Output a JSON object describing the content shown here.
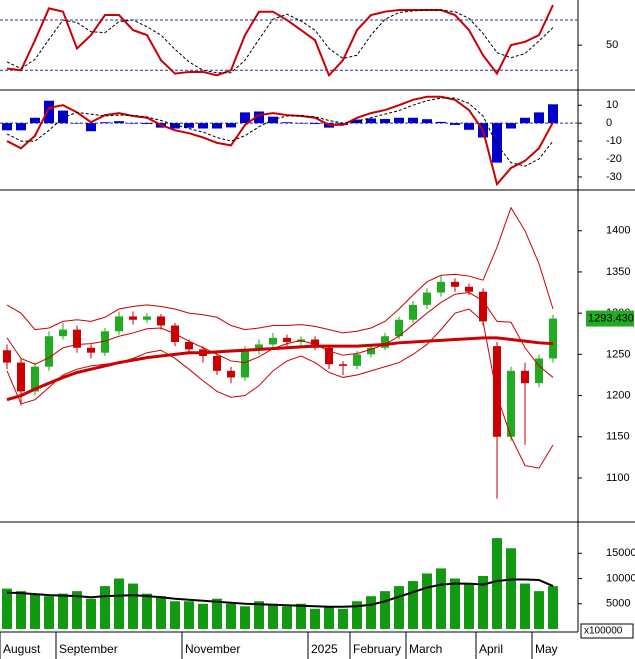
{
  "chart_data": [
    {
      "type": "line",
      "ylim": [
        0,
        98
      ],
      "yticks": [
        50
      ],
      "levels": [
        20,
        80
      ],
      "series": [
        {
          "color": "#cc0000",
          "values": [
            22,
            20,
            56,
            94,
            90,
            46,
            62,
            86,
            86,
            68,
            62,
            32,
            16,
            18,
            18,
            14,
            20,
            62,
            90,
            90,
            80,
            68,
            56,
            14,
            32,
            68,
            86,
            90,
            92,
            92,
            92,
            92,
            86,
            68,
            38,
            16,
            50,
            54,
            62,
            98
          ]
        },
        {
          "color": "#000000",
          "style": "dashed",
          "values": [
            30,
            22,
            33,
            57,
            80,
            77,
            66,
            65,
            78,
            80,
            72,
            62,
            45,
            30,
            20,
            17,
            17,
            32,
            57,
            81,
            87,
            79,
            68,
            46,
            34,
            38,
            62,
            81,
            89,
            91,
            92,
            92,
            90,
            82,
            64,
            41,
            35,
            40,
            55,
            71
          ]
        }
      ]
    },
    {
      "type": "line",
      "ylim": [
        -35.6,
        16.8
      ],
      "yticks": [
        10,
        0,
        -10,
        -20,
        -30
      ],
      "levels": [
        0
      ],
      "series": [
        {
          "color": "#0000cc",
          "kind": "bar",
          "values": [
            -4,
            -4,
            3,
            12.5,
            7,
            0,
            -4.5,
            0.5,
            1.1,
            -0.3,
            -0.5,
            -2.5,
            -3,
            -2.6,
            -3,
            -3,
            -2.4,
            6,
            6.5,
            3.6,
            0.5,
            -0.2,
            -0.5,
            -2.5,
            -1,
            2,
            2.6,
            2.3,
            3,
            3,
            2.2,
            0.7,
            -1,
            -3.7,
            -8,
            -22,
            -3,
            3,
            6,
            10.5
          ]
        },
        {
          "color": "#cc0000",
          "values": [
            -10,
            -14,
            -7,
            8.5,
            10,
            6,
            0.5,
            4.5,
            5.6,
            4,
            3,
            -1,
            -4,
            -5.6,
            -8,
            -11,
            -12.4,
            -1,
            4.5,
            5.6,
            4.5,
            4,
            3,
            -1,
            -1,
            3,
            5.6,
            7.3,
            10,
            13,
            14.7,
            14.7,
            13,
            7.3,
            -4,
            -34,
            -25,
            -21,
            -14,
            0.5
          ]
        },
        {
          "color": "#000000",
          "style": "dashed",
          "values": [
            -6,
            -10,
            -10,
            -4,
            3,
            6,
            5,
            4,
            4.5,
            4.3,
            3.5,
            1.5,
            -1,
            -3,
            -5,
            -8,
            -10,
            -7,
            -2,
            2,
            4,
            4.2,
            3.5,
            1.5,
            0,
            1,
            3,
            5,
            7,
            10,
            12.5,
            14,
            14,
            11,
            4,
            -12,
            -22,
            -24,
            -20,
            -10
          ]
        }
      ]
    },
    {
      "type": "candlestick",
      "ylim": [
        1049,
        1447
      ],
      "yticks": [
        1100,
        1150,
        1200,
        1250,
        1300,
        1350,
        1400
      ],
      "up_color": "#22aa22",
      "down_color": "#cc0000",
      "open": [
        1255,
        1240,
        1205,
        1235,
        1272,
        1280,
        1258,
        1252,
        1278,
        1296,
        1292,
        1296,
        1285,
        1265,
        1256,
        1248,
        1230,
        1222,
        1255,
        1262,
        1270,
        1265,
        1268,
        1258,
        1238,
        1236,
        1250,
        1258,
        1272,
        1292,
        1310,
        1325,
        1338,
        1332,
        1326,
        1260,
        1150,
        1230,
        1215,
        1245
      ],
      "high": [
        1262,
        1245,
        1240,
        1278,
        1288,
        1285,
        1262,
        1282,
        1302,
        1302,
        1300,
        1299,
        1288,
        1268,
        1260,
        1250,
        1235,
        1260,
        1268,
        1276,
        1274,
        1272,
        1272,
        1262,
        1242,
        1254,
        1262,
        1276,
        1296,
        1315,
        1330,
        1345,
        1342,
        1336,
        1330,
        1265,
        1235,
        1240,
        1250,
        1298
      ],
      "low": [
        1232,
        1188,
        1200,
        1230,
        1268,
        1252,
        1245,
        1248,
        1274,
        1286,
        1288,
        1280,
        1260,
        1250,
        1240,
        1225,
        1215,
        1218,
        1250,
        1258,
        1260,
        1260,
        1255,
        1232,
        1225,
        1232,
        1246,
        1255,
        1268,
        1288,
        1305,
        1320,
        1326,
        1322,
        1285,
        1075,
        1145,
        1140,
        1210,
        1240
      ],
      "close": [
        1240,
        1205,
        1235,
        1272,
        1280,
        1258,
        1252,
        1278,
        1296,
        1292,
        1296,
        1285,
        1265,
        1256,
        1248,
        1230,
        1222,
        1255,
        1262,
        1270,
        1265,
        1268,
        1258,
        1238,
        1236,
        1250,
        1258,
        1272,
        1292,
        1310,
        1325,
        1338,
        1332,
        1326,
        1290,
        1150,
        1230,
        1215,
        1245,
        1293.43
      ],
      "last_value_label": "1293.430",
      "last_label_color": "#22aa22",
      "series": [
        {
          "color": "#cc0000",
          "width": 1,
          "values": [
            1310,
            1300,
            1280,
            1282,
            1290,
            1292,
            1290,
            1295,
            1305,
            1308,
            1310,
            1308,
            1305,
            1300,
            1298,
            1295,
            1285,
            1280,
            1282,
            1285,
            1285,
            1286,
            1284,
            1280,
            1276,
            1278,
            1282,
            1290,
            1305,
            1322,
            1338,
            1346,
            1347,
            1345,
            1340,
            1380,
            1428,
            1400,
            1360,
            1305
          ]
        },
        {
          "color": "#cc0000",
          "width": 1,
          "values": [
            1270,
            1245,
            1238,
            1246,
            1258,
            1262,
            1263,
            1266,
            1272,
            1276,
            1281,
            1282,
            1275,
            1266,
            1258,
            1250,
            1242,
            1240,
            1247,
            1257,
            1263,
            1267,
            1262,
            1254,
            1249,
            1251,
            1256,
            1262,
            1272,
            1286,
            1300,
            1313,
            1323,
            1325,
            1315,
            1290,
            1289,
            1258,
            1236,
            1222
          ]
        },
        {
          "color": "#cc0000",
          "width": 1,
          "values": [
            1230,
            1190,
            1195,
            1210,
            1225,
            1232,
            1236,
            1238,
            1240,
            1245,
            1252,
            1255,
            1245,
            1232,
            1218,
            1205,
            1198,
            1200,
            1212,
            1230,
            1242,
            1248,
            1240,
            1228,
            1222,
            1225,
            1230,
            1235,
            1240,
            1250,
            1262,
            1280,
            1300,
            1305,
            1290,
            1200,
            1150,
            1115,
            1112,
            1140
          ]
        },
        {
          "color": "#cc0000",
          "width": 3,
          "values": [
            1195,
            1200,
            1208,
            1215,
            1222,
            1228,
            1232,
            1236,
            1240,
            1243,
            1246,
            1248,
            1250,
            1252,
            1252,
            1253,
            1254,
            1255,
            1256,
            1257,
            1258,
            1259,
            1260,
            1260,
            1260,
            1260,
            1261,
            1262,
            1264,
            1265,
            1266,
            1267,
            1268,
            1269,
            1270,
            1270,
            1268,
            1266,
            1264,
            1263
          ]
        }
      ]
    },
    {
      "type": "bar",
      "ylim": [
        0,
        20600
      ],
      "yticks": [
        5000,
        10000,
        15000
      ],
      "color": "#119911",
      "values": [
        8000,
        7500,
        7000,
        6500,
        7000,
        7500,
        6000,
        8500,
        10000,
        9000,
        7000,
        6500,
        5500,
        5500,
        5000,
        6000,
        5000,
        4500,
        5500,
        5000,
        4500,
        5000,
        4000,
        4500,
        4000,
        5500,
        6500,
        7500,
        8500,
        9500,
        11000,
        12000,
        10000,
        9000,
        10500,
        18000,
        16000,
        9000,
        7500,
        8500
      ],
      "unit_label": "x100000",
      "series": [
        {
          "color": "#000000",
          "width": 2,
          "values": [
            7200,
            7100,
            6900,
            6700,
            6600,
            6500,
            6300,
            6500,
            6600,
            6700,
            6500,
            6300,
            6000,
            5800,
            5600,
            5400,
            5200,
            5000,
            4900,
            4800,
            4700,
            4600,
            4500,
            4400,
            4400,
            4500,
            4800,
            5500,
            6400,
            7300,
            8200,
            8800,
            9000,
            9000,
            8800,
            9500,
            9800,
            9800,
            9700,
            8500
          ]
        }
      ],
      "xticks": [
        {
          "value": 0,
          "label": "August"
        },
        {
          "value": 4,
          "label": "September"
        },
        {
          "value": 13,
          "label": "November"
        },
        {
          "value": 22,
          "label": "2025"
        },
        {
          "value": 25,
          "label": "February"
        },
        {
          "value": 29,
          "label": "March"
        },
        {
          "value": 34,
          "label": "April"
        },
        {
          "value": 38,
          "label": "May"
        }
      ]
    }
  ]
}
